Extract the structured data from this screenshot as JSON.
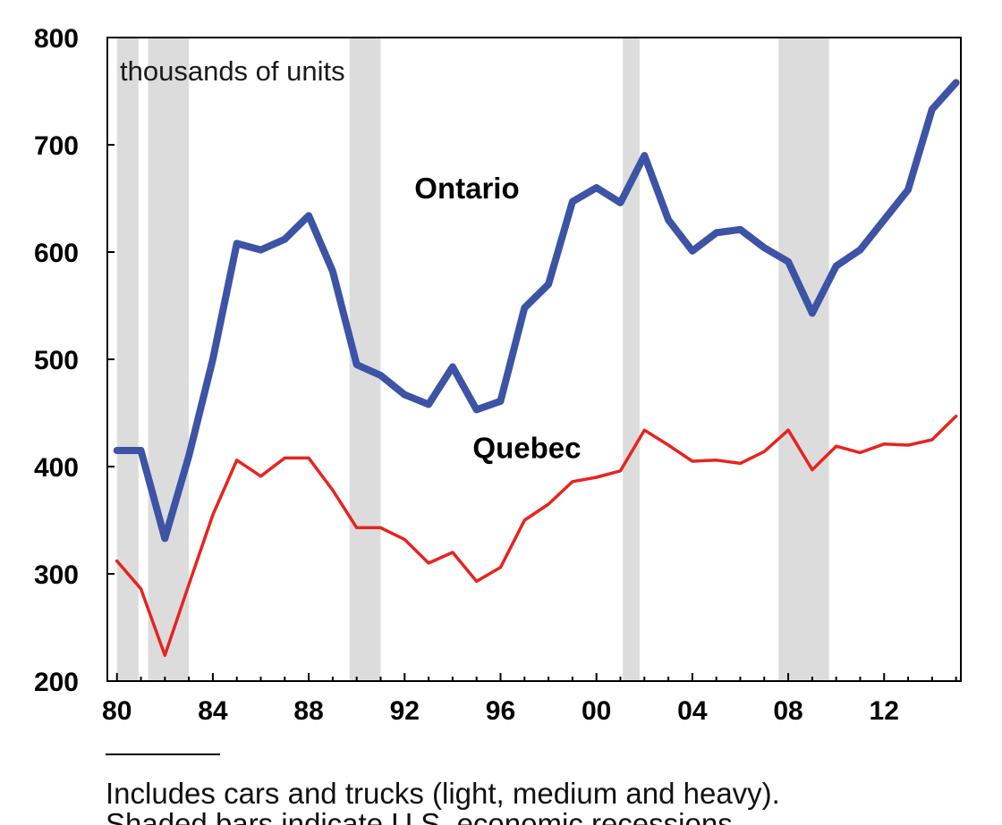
{
  "chart_data": {
    "type": "line",
    "title": "",
    "xlabel": "",
    "ylabel": "",
    "unit_label": "thousands of units",
    "ylim": [
      200,
      800
    ],
    "yticks": [
      200,
      300,
      400,
      500,
      600,
      700,
      800
    ],
    "xlim": [
      1979.6,
      2015.2
    ],
    "xticks": [
      {
        "year": 1980,
        "label": "80"
      },
      {
        "year": 1984,
        "label": "84"
      },
      {
        "year": 1988,
        "label": "88"
      },
      {
        "year": 1992,
        "label": "92"
      },
      {
        "year": 1996,
        "label": "96"
      },
      {
        "year": 2000,
        "label": "00"
      },
      {
        "year": 2004,
        "label": "04"
      },
      {
        "year": 2008,
        "label": "08"
      },
      {
        "year": 2012,
        "label": "12"
      }
    ],
    "shaded_periods": [
      [
        1980.0,
        1980.9
      ],
      [
        1981.3,
        1983.0
      ],
      [
        1989.7,
        1991.0
      ],
      [
        2001.1,
        2001.8
      ],
      [
        2007.6,
        2009.7
      ]
    ],
    "series": [
      {
        "name": "Ontario",
        "color": "#3c53a6",
        "x": [
          1980,
          1981,
          1982,
          1983,
          1984,
          1985,
          1986,
          1987,
          1988,
          1989,
          1990,
          1991,
          1992,
          1993,
          1994,
          1995,
          1996,
          1997,
          1998,
          1999,
          2000,
          2001,
          2002,
          2003,
          2004,
          2005,
          2006,
          2007,
          2008,
          2009,
          2010,
          2011,
          2012,
          2013,
          2014,
          2015
        ],
        "values": [
          415,
          415,
          333,
          410,
          500,
          608,
          602,
          612,
          634,
          582,
          495,
          485,
          467,
          458,
          493,
          453,
          461,
          548,
          570,
          647,
          660,
          646,
          690,
          630,
          601,
          618,
          621,
          604,
          591,
          543,
          587,
          602,
          630,
          658,
          733,
          758
        ]
      },
      {
        "name": "Quebec",
        "color": "#e8231f",
        "x": [
          1980,
          1981,
          1982,
          1983,
          1984,
          1985,
          1986,
          1987,
          1988,
          1989,
          1990,
          1991,
          1992,
          1993,
          1994,
          1995,
          1996,
          1997,
          1998,
          1999,
          2000,
          2001,
          2002,
          2003,
          2004,
          2005,
          2006,
          2007,
          2008,
          2009,
          2010,
          2011,
          2012,
          2013,
          2014,
          2015
        ],
        "values": [
          312,
          286,
          224,
          290,
          355,
          406,
          391,
          408,
          408,
          378,
          343,
          343,
          332,
          310,
          320,
          293,
          306,
          350,
          365,
          386,
          390,
          396,
          434,
          420,
          405,
          406,
          403,
          414,
          434,
          397,
          419,
          413,
          421,
          420,
          425,
          447
        ]
      }
    ],
    "series_labels": [
      {
        "series": 0,
        "text": "Ontario",
        "anchor_year": 1994.6,
        "anchor_value": 650
      },
      {
        "series": 1,
        "text": "Quebec",
        "anchor_year": 1997.1,
        "anchor_value": 408
      }
    ],
    "grid": false,
    "legend": "none"
  },
  "footnote": {
    "line1": "Includes  cars and trucks (light,  medium and heavy).",
    "line2": "Shaded bars indicate U.S. economic recessions."
  }
}
